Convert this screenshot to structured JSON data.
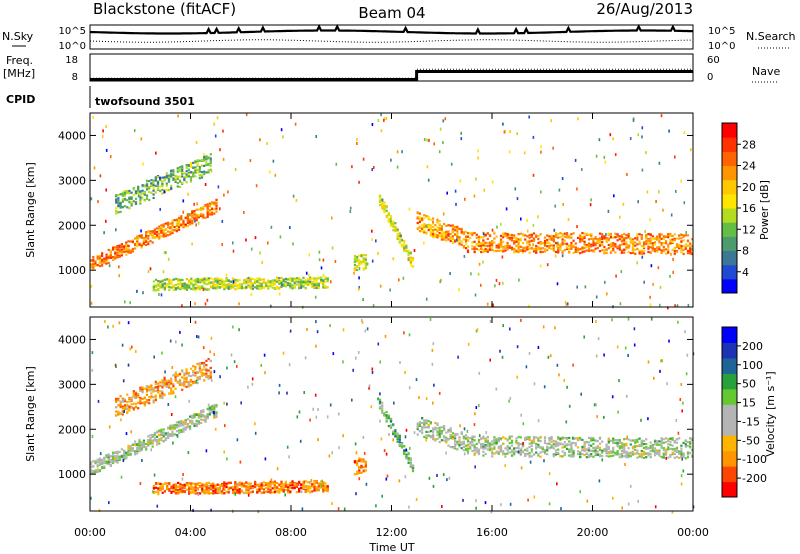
{
  "header": {
    "station": "Blackstone (fitACF)",
    "beam": "Beam 04",
    "date": "26/Aug/2013"
  },
  "noise_panel": {
    "left_label": "N.Sky",
    "right_label": "N.Search",
    "left_ticks": [
      "10^5",
      "10^0"
    ],
    "right_ticks": [
      "10^5",
      "10^0"
    ]
  },
  "freq_panel": {
    "left_label_1": "Freq.",
    "left_label_2": "[MHz]",
    "right_label": "Nave",
    "left_ticks": [
      "18",
      "8"
    ],
    "right_ticks": [
      "60",
      "0"
    ],
    "freq_step": {
      "before": 8.3,
      "after": 13.0,
      "change_hour": 13.0
    },
    "nave_step": {
      "before": 6,
      "after": 38,
      "change_hour": 13.0
    }
  },
  "cpid": {
    "label": "CPID",
    "program": "twofsound 3501"
  },
  "x_axis": {
    "label": "Time UT",
    "range_hours": [
      0,
      24
    ],
    "ticks": [
      "00:00",
      "04:00",
      "08:00",
      "12:00",
      "16:00",
      "20:00",
      "00:00"
    ]
  },
  "chart_data": [
    {
      "type": "heatmap",
      "name": "power",
      "ylabel": "Slant Range [km]",
      "ylim": [
        180,
        4500
      ],
      "yticks": [
        "4000",
        "3000",
        "2000",
        "1000"
      ],
      "colorbar_label": "Power [dB]",
      "colorbar_ticks": [
        "28",
        "24",
        "20",
        "16",
        "12",
        "8",
        "4"
      ],
      "colors": [
        "#0000ff",
        "#1e4bd2",
        "#3c7896",
        "#4b9b6e",
        "#64be46",
        "#b4dc1e",
        "#ffe600",
        "#ffc800",
        "#ff9600",
        "#ff6400",
        "#ff3200",
        "#ff0000"
      ],
      "bands": [
        {
          "h0": 0.0,
          "h1": 5.0,
          "r0": 1150,
          "r1": 2450,
          "width": 300,
          "value": 0.78
        },
        {
          "h0": 1.0,
          "h1": 4.8,
          "r0": 2500,
          "r1": 3400,
          "width": 450,
          "value": 0.35
        },
        {
          "h0": 2.5,
          "h1": 9.5,
          "r0": 700,
          "r1": 750,
          "width": 250,
          "value": 0.45
        },
        {
          "h0": 10.5,
          "h1": 11.0,
          "r0": 1200,
          "r1": 1200,
          "width": 350,
          "value": 0.5
        },
        {
          "h0": 11.5,
          "h1": 12.9,
          "r0": 2600,
          "r1": 1100,
          "width": 260,
          "value": 0.55
        },
        {
          "h0": 13.0,
          "h1": 15.0,
          "r0": 2100,
          "r1": 1700,
          "width": 420,
          "value": 0.72
        },
        {
          "h0": 15.0,
          "h1": 24.0,
          "r0": 1650,
          "r1": 1600,
          "width": 450,
          "value": 0.76
        }
      ]
    },
    {
      "type": "heatmap",
      "name": "velocity",
      "ylabel": "Slant Range [km]",
      "ylim": [
        180,
        4500
      ],
      "yticks": [
        "4000",
        "3000",
        "2000",
        "1000"
      ],
      "colorbar_label": "Velocity [m s⁻¹]",
      "colorbar_ticks": [
        "200",
        "100",
        "50",
        "15",
        "-15",
        "-50",
        "-100",
        "-200"
      ],
      "colors": [
        "#ff0000",
        "#ff4600",
        "#ff9600",
        "#ffb400",
        "#b4b4b4",
        "#b4b4b4",
        "#64c832",
        "#28a03c",
        "#1e6496",
        "#1e32b4",
        "#0000ff"
      ],
      "bands": [
        {
          "h0": 0.0,
          "h1": 5.0,
          "r0": 1150,
          "r1": 2450,
          "width": 300,
          "value": 0.5
        },
        {
          "h0": 1.0,
          "h1": 4.8,
          "r0": 2500,
          "r1": 3400,
          "width": 450,
          "value": 0.25
        },
        {
          "h0": 2.5,
          "h1": 9.5,
          "r0": 700,
          "r1": 750,
          "width": 250,
          "value": 0.18
        },
        {
          "h0": 10.5,
          "h1": 11.0,
          "r0": 1200,
          "r1": 1200,
          "width": 350,
          "value": 0.2
        },
        {
          "h0": 11.5,
          "h1": 12.9,
          "r0": 2600,
          "r1": 1100,
          "width": 260,
          "value": 0.62
        },
        {
          "h0": 13.0,
          "h1": 15.0,
          "r0": 2100,
          "r1": 1700,
          "width": 420,
          "value": 0.5
        },
        {
          "h0": 15.0,
          "h1": 24.0,
          "r0": 1650,
          "r1": 1600,
          "width": 450,
          "value": 0.5
        }
      ]
    }
  ]
}
